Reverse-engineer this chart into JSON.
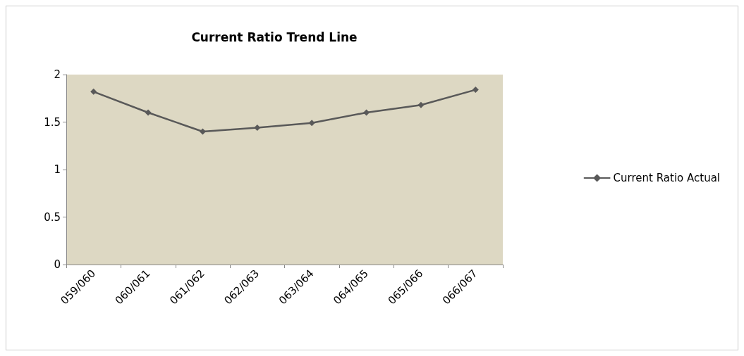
{
  "chart_data": {
    "type": "line",
    "title": "Current Ratio Trend Line",
    "categories": [
      "059/060",
      "060/061",
      "061/062",
      "062/063",
      "063/064",
      "064/065",
      "065/066",
      "066/067"
    ],
    "series": [
      {
        "name": "Current Ratio Actual",
        "color": "#595959",
        "values": [
          1.82,
          1.6,
          1.4,
          1.44,
          1.49,
          1.6,
          1.68,
          1.84
        ]
      }
    ],
    "ylim": [
      0,
      2
    ],
    "yticks": [
      0,
      0.5,
      1,
      1.5,
      2
    ],
    "grid": false,
    "legend": "right",
    "marker": "diamond",
    "line_style": "solid"
  }
}
